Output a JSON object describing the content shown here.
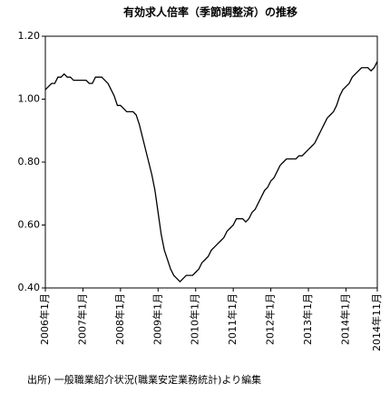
{
  "chart_data": {
    "type": "line",
    "title": "有効求人倍率（季節調整済）の推移",
    "source": "出所) 一般職業紹介状況(職業安定業務統計)より編集",
    "categories": [
      "2006年1月",
      null,
      null,
      null,
      null,
      null,
      null,
      null,
      null,
      null,
      null,
      null,
      "2007年1月",
      null,
      null,
      null,
      null,
      null,
      null,
      null,
      null,
      null,
      null,
      null,
      "2008年1月",
      null,
      null,
      null,
      null,
      null,
      null,
      null,
      null,
      null,
      null,
      null,
      "2009年1月",
      null,
      null,
      null,
      null,
      null,
      null,
      null,
      null,
      null,
      null,
      null,
      "2010年1月",
      null,
      null,
      null,
      null,
      null,
      null,
      null,
      null,
      null,
      null,
      null,
      "2011年1月",
      null,
      null,
      null,
      null,
      null,
      null,
      null,
      null,
      null,
      null,
      null,
      "2012年1月",
      null,
      null,
      null,
      null,
      null,
      null,
      null,
      null,
      null,
      null,
      null,
      "2013年1月",
      null,
      null,
      null,
      null,
      null,
      null,
      null,
      null,
      null,
      null,
      null,
      "2014年1月",
      null,
      null,
      null,
      null,
      null,
      null,
      null,
      null,
      null,
      "2014年11月"
    ],
    "values": [
      1.03,
      1.04,
      1.05,
      1.05,
      1.07,
      1.07,
      1.08,
      1.07,
      1.07,
      1.06,
      1.06,
      1.06,
      1.06,
      1.06,
      1.05,
      1.05,
      1.07,
      1.07,
      1.07,
      1.06,
      1.05,
      1.03,
      1.01,
      0.98,
      0.98,
      0.97,
      0.96,
      0.96,
      0.96,
      0.95,
      0.92,
      0.88,
      0.84,
      0.8,
      0.76,
      0.71,
      0.64,
      0.57,
      0.52,
      0.49,
      0.46,
      0.44,
      0.43,
      0.42,
      0.43,
      0.44,
      0.44,
      0.44,
      0.45,
      0.46,
      0.48,
      0.49,
      0.5,
      0.52,
      0.53,
      0.54,
      0.55,
      0.56,
      0.58,
      0.59,
      0.6,
      0.62,
      0.62,
      0.62,
      0.61,
      0.62,
      0.64,
      0.65,
      0.67,
      0.69,
      0.71,
      0.72,
      0.74,
      0.75,
      0.77,
      0.79,
      0.8,
      0.81,
      0.81,
      0.81,
      0.81,
      0.82,
      0.82,
      0.83,
      0.84,
      0.85,
      0.86,
      0.88,
      0.9,
      0.92,
      0.94,
      0.95,
      0.96,
      0.98,
      1.01,
      1.03,
      1.04,
      1.05,
      1.07,
      1.08,
      1.09,
      1.1,
      1.1,
      1.1,
      1.09,
      1.1,
      1.12
    ],
    "color": "#000000",
    "ylim": [
      0.4,
      1.2
    ],
    "yticks": [
      {
        "value": 0.4,
        "label": "0.40"
      },
      {
        "value": 0.6,
        "label": "0.60"
      },
      {
        "value": 0.8,
        "label": "0.80"
      },
      {
        "value": 1.0,
        "label": "1.00"
      },
      {
        "value": 1.2,
        "label": "1.20"
      }
    ],
    "grid": false
  }
}
